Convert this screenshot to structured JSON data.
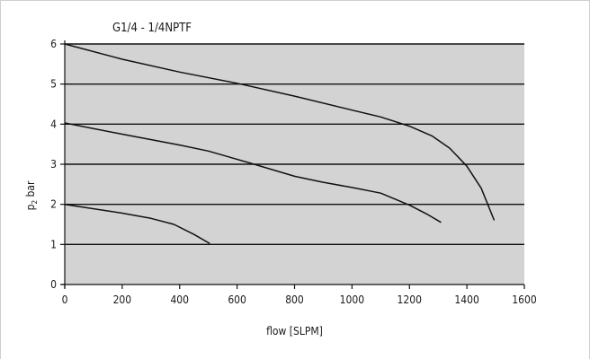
{
  "chart_data": {
    "type": "line",
    "title": "G1/4  -  1/4NPTF",
    "xlabel": "flow [SLPM]",
    "ylabel": "p2 bar",
    "xlim": [
      0,
      1600
    ],
    "ylim": [
      0,
      6
    ],
    "x_ticks": [
      0,
      200,
      400,
      600,
      800,
      1000,
      1200,
      1400,
      1600
    ],
    "y_ticks": [
      0,
      1,
      2,
      3,
      4,
      5,
      6
    ],
    "grid": "horizontal",
    "plot_background": "#d3d3d3",
    "line_color": "#111111",
    "series": [
      {
        "points": [
          [
            0,
            6.0
          ],
          [
            200,
            5.62
          ],
          [
            400,
            5.3
          ],
          [
            600,
            5.02
          ],
          [
            800,
            4.7
          ],
          [
            1000,
            4.35
          ],
          [
            1100,
            4.18
          ],
          [
            1200,
            3.95
          ],
          [
            1280,
            3.7
          ],
          [
            1340,
            3.4
          ],
          [
            1400,
            2.95
          ],
          [
            1450,
            2.4
          ],
          [
            1495,
            1.6
          ]
        ]
      },
      {
        "points": [
          [
            0,
            4.03
          ],
          [
            200,
            3.75
          ],
          [
            400,
            3.48
          ],
          [
            500,
            3.33
          ],
          [
            650,
            3.02
          ],
          [
            800,
            2.7
          ],
          [
            900,
            2.55
          ],
          [
            1000,
            2.42
          ],
          [
            1100,
            2.28
          ],
          [
            1200,
            1.98
          ],
          [
            1260,
            1.76
          ],
          [
            1310,
            1.55
          ]
        ]
      },
      {
        "points": [
          [
            0,
            2.0
          ],
          [
            200,
            1.78
          ],
          [
            300,
            1.65
          ],
          [
            380,
            1.5
          ],
          [
            450,
            1.25
          ],
          [
            505,
            1.02
          ]
        ]
      }
    ]
  }
}
